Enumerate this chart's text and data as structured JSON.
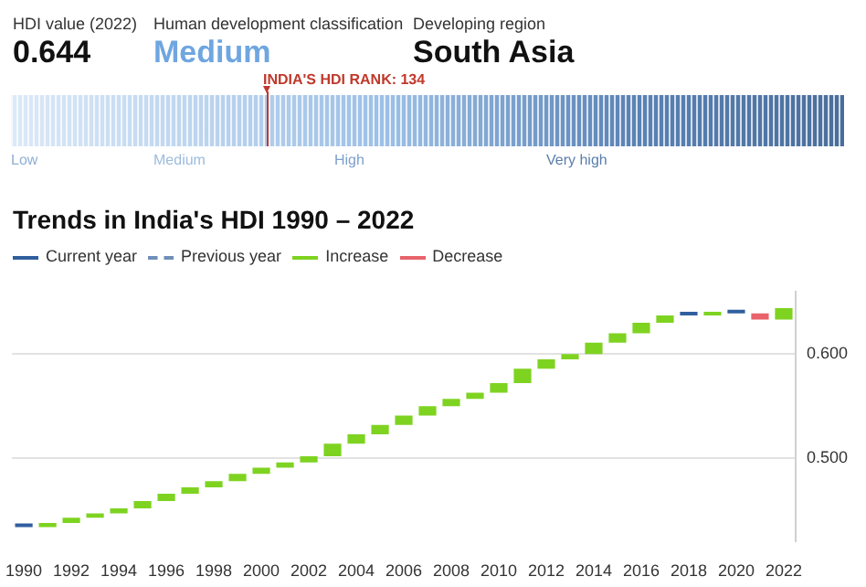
{
  "chart_data": {
    "type": "bar",
    "title": "Trends in India's HDI 1990 – 2022",
    "categories": [
      "1990",
      null,
      "1992",
      null,
      "1994",
      null,
      "1996",
      null,
      "1998",
      null,
      "2000",
      null,
      "2002",
      null,
      "2004",
      null,
      "2006",
      null,
      "2008",
      null,
      "2010",
      null,
      "2012",
      null,
      "2014",
      null,
      "2016",
      null,
      "2018",
      null,
      "2020",
      null,
      "2022"
    ],
    "series": [
      {
        "name": "Increase",
        "color": "#7ed321",
        "values": [
          null,
          0.004,
          0.005,
          0.004,
          0.005,
          0.007,
          0.007,
          0.006,
          0.006,
          0.007,
          0.006,
          0.005,
          0.006,
          0.012,
          0.009,
          0.009,
          0.009,
          0.009,
          0.007,
          0.006,
          0.009,
          0.014,
          0.009,
          0.005,
          0.011,
          0.009,
          0.01,
          0.007,
          null,
          0.002,
          null,
          null,
          0.011
        ],
        "base": [
          null,
          0.434,
          0.438,
          0.443,
          0.447,
          0.452,
          0.459,
          0.466,
          0.472,
          0.478,
          0.485,
          0.491,
          0.496,
          0.502,
          0.514,
          0.523,
          0.532,
          0.541,
          0.55,
          0.557,
          0.563,
          0.572,
          0.586,
          0.595,
          0.6,
          0.611,
          0.62,
          0.63,
          null,
          0.637,
          null,
          null,
          0.633
        ]
      },
      {
        "name": "Decrease",
        "color": "#e8636b",
        "values": [
          null,
          null,
          null,
          null,
          null,
          null,
          null,
          null,
          null,
          null,
          null,
          null,
          null,
          null,
          null,
          null,
          null,
          null,
          null,
          null,
          null,
          null,
          null,
          null,
          null,
          null,
          null,
          null,
          null,
          null,
          null,
          -0.006,
          null
        ],
        "base": [
          null,
          null,
          null,
          null,
          null,
          null,
          null,
          null,
          null,
          null,
          null,
          null,
          null,
          null,
          null,
          null,
          null,
          null,
          null,
          null,
          null,
          null,
          null,
          null,
          null,
          null,
          null,
          null,
          null,
          null,
          null,
          0.639,
          null
        ]
      },
      {
        "name": "Current year",
        "color": "#2f5f9e",
        "values": [
          0,
          null,
          null,
          null,
          null,
          null,
          null,
          null,
          null,
          null,
          null,
          null,
          null,
          null,
          null,
          null,
          null,
          null,
          null,
          null,
          null,
          null,
          null,
          null,
          null,
          null,
          null,
          null,
          0,
          null,
          0,
          null,
          null
        ],
        "base": [
          0.434,
          null,
          null,
          null,
          null,
          null,
          null,
          null,
          null,
          null,
          null,
          null,
          null,
          null,
          null,
          null,
          null,
          null,
          null,
          null,
          null,
          null,
          null,
          null,
          null,
          null,
          null,
          null,
          0.637,
          null,
          0.639,
          null,
          null
        ]
      }
    ],
    "ylim": [
      0.42,
      0.66
    ],
    "yticks": [
      {
        "value": 0.5,
        "label": "0.500"
      },
      {
        "value": 0.6,
        "label": "0.600"
      }
    ],
    "grid": "y",
    "legend": "top left",
    "annotations": [
      "HDI value (2022)",
      "0.644",
      "Human development classification",
      "Medium",
      "Developing region",
      "South Asia",
      "INDIA'S HDI RANK: 134",
      "Low",
      "Medium",
      "High",
      "Very high",
      "Previous year"
    ]
  }
}
